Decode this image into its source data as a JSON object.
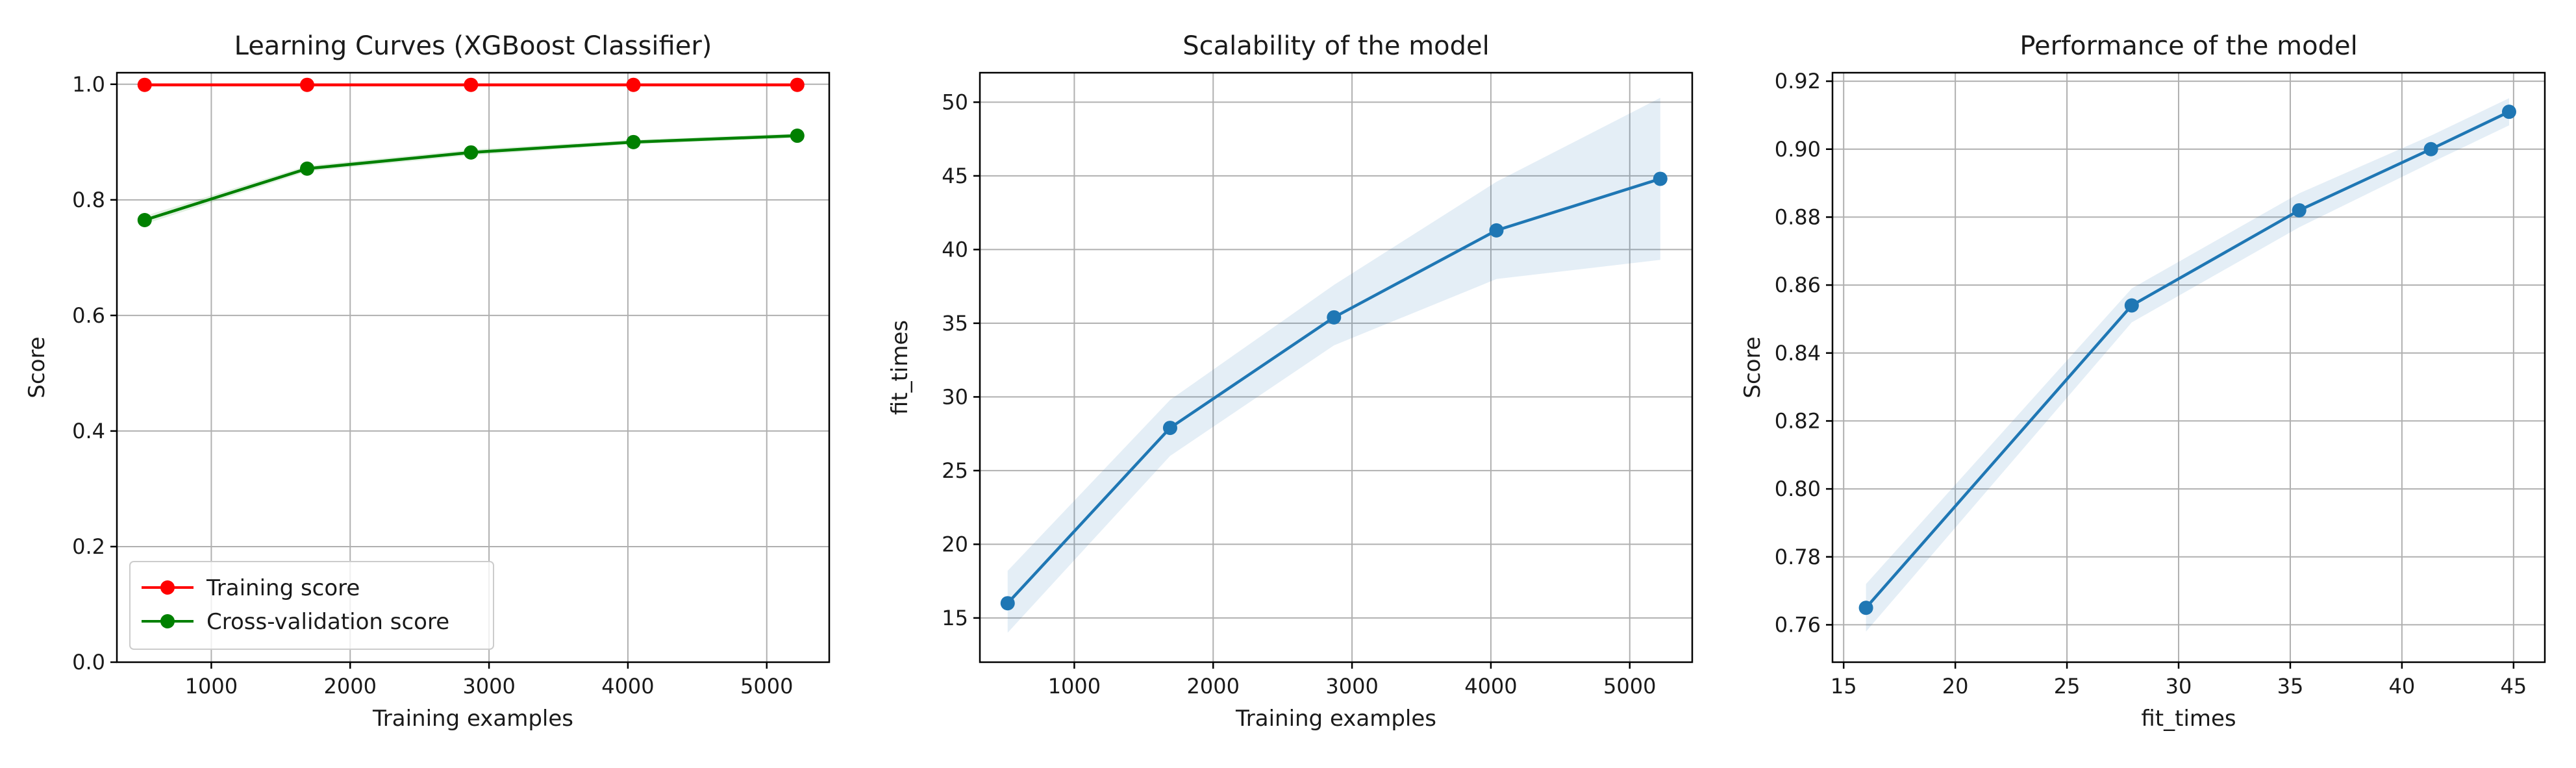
{
  "chart_data": [
    {
      "type": "line",
      "title": "Learning Curves (XGBoost Classifier)",
      "xlabel": "Training examples",
      "ylabel": "Score",
      "xlim": [
        320,
        5450
      ],
      "ylim": [
        0.0,
        1.02
      ],
      "xticks": [
        1000,
        2000,
        3000,
        4000,
        5000
      ],
      "yticks": [
        0.0,
        0.2,
        0.4,
        0.6,
        0.8,
        1.0
      ],
      "ytick_labels": [
        "0.0",
        "0.2",
        "0.4",
        "0.6",
        "0.8",
        "1.0"
      ],
      "grid": true,
      "legend_position": "lower-left",
      "series": [
        {
          "name": "Training score",
          "color": "#ff0000",
          "band_color": "#ff0000",
          "x": [
            520,
            1690,
            2870,
            4040,
            5220
          ],
          "y": [
            0.999,
            0.999,
            0.999,
            0.999,
            0.999
          ],
          "y_low": [
            0.997,
            0.997,
            0.997,
            0.997,
            0.997
          ],
          "y_high": [
            1.0,
            1.0,
            1.0,
            1.0,
            1.0
          ]
        },
        {
          "name": "Cross-validation score",
          "color": "#008000",
          "band_color": "#008000",
          "x": [
            520,
            1690,
            2870,
            4040,
            5220
          ],
          "y": [
            0.765,
            0.854,
            0.882,
            0.9,
            0.911
          ],
          "y_low": [
            0.758,
            0.849,
            0.877,
            0.896,
            0.907
          ],
          "y_high": [
            0.772,
            0.859,
            0.887,
            0.904,
            0.915
          ]
        }
      ]
    },
    {
      "type": "line",
      "title": "Scalability of the model",
      "xlabel": "Training examples",
      "ylabel": "fit_times",
      "xlim": [
        320,
        5450
      ],
      "ylim": [
        12.0,
        52.0
      ],
      "xticks": [
        1000,
        2000,
        3000,
        4000,
        5000
      ],
      "yticks": [
        15,
        20,
        25,
        30,
        35,
        40,
        45,
        50
      ],
      "ytick_labels": [
        "15",
        "20",
        "25",
        "30",
        "35",
        "40",
        "45",
        "50"
      ],
      "grid": true,
      "series": [
        {
          "color": "#1f77b4",
          "band_color": "#1f77b4",
          "x": [
            520,
            1690,
            2870,
            4040,
            5220
          ],
          "y": [
            16.0,
            27.9,
            35.4,
            41.3,
            44.8
          ],
          "y_low": [
            14.0,
            26.0,
            33.5,
            38.0,
            39.3
          ],
          "y_high": [
            18.2,
            29.8,
            37.6,
            44.6,
            50.3
          ]
        }
      ]
    },
    {
      "type": "line",
      "title": "Performance of the model",
      "xlabel": "fit_times",
      "ylabel": "Score",
      "xlim": [
        14.5,
        46.4
      ],
      "ylim": [
        0.749,
        0.9225
      ],
      "xticks": [
        15,
        20,
        25,
        30,
        35,
        40,
        45
      ],
      "yticks": [
        0.76,
        0.78,
        0.8,
        0.82,
        0.84,
        0.86,
        0.88,
        0.9,
        0.92
      ],
      "ytick_labels": [
        "0.76",
        "0.78",
        "0.80",
        "0.82",
        "0.84",
        "0.86",
        "0.88",
        "0.90",
        "0.92"
      ],
      "grid": true,
      "series": [
        {
          "color": "#1f77b4",
          "band_color": "#1f77b4",
          "x": [
            16.0,
            27.9,
            35.4,
            41.3,
            44.8
          ],
          "y": [
            0.765,
            0.854,
            0.882,
            0.9,
            0.911
          ],
          "y_low": [
            0.758,
            0.849,
            0.877,
            0.896,
            0.907
          ],
          "y_high": [
            0.772,
            0.859,
            0.887,
            0.904,
            0.915
          ]
        }
      ]
    }
  ]
}
